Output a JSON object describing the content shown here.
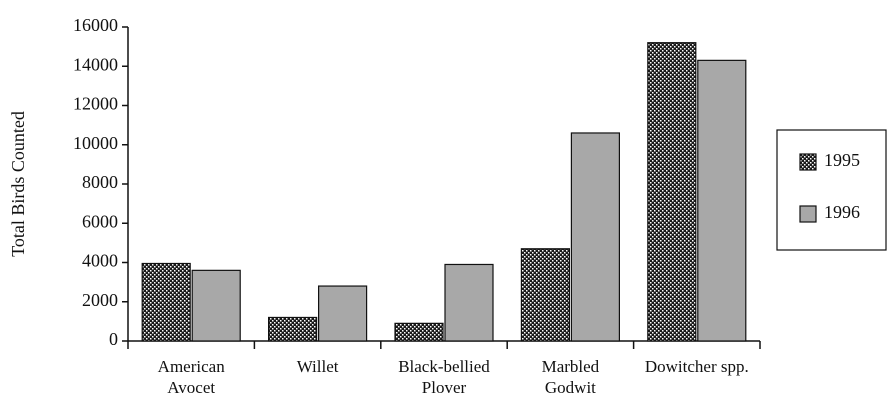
{
  "chart_data": {
    "type": "bar",
    "ylabel": "Total Birds Counted",
    "categories": [
      "American Avocet",
      "Willet",
      "Black-bellied Plover",
      "Marbled Godwit",
      "Dowitcher spp."
    ],
    "series": [
      {
        "name": "1995",
        "color": "#1a1a1a",
        "values": [
          3950,
          1200,
          900,
          4700,
          15200
        ]
      },
      {
        "name": "1996",
        "color": "#a8a8a8",
        "values": [
          3600,
          2800,
          3900,
          10600,
          14300
        ]
      }
    ],
    "ylim": [
      0,
      16000
    ],
    "yticks": [
      0,
      2000,
      4000,
      6000,
      8000,
      10000,
      12000,
      14000,
      16000
    ],
    "legend": "right"
  }
}
